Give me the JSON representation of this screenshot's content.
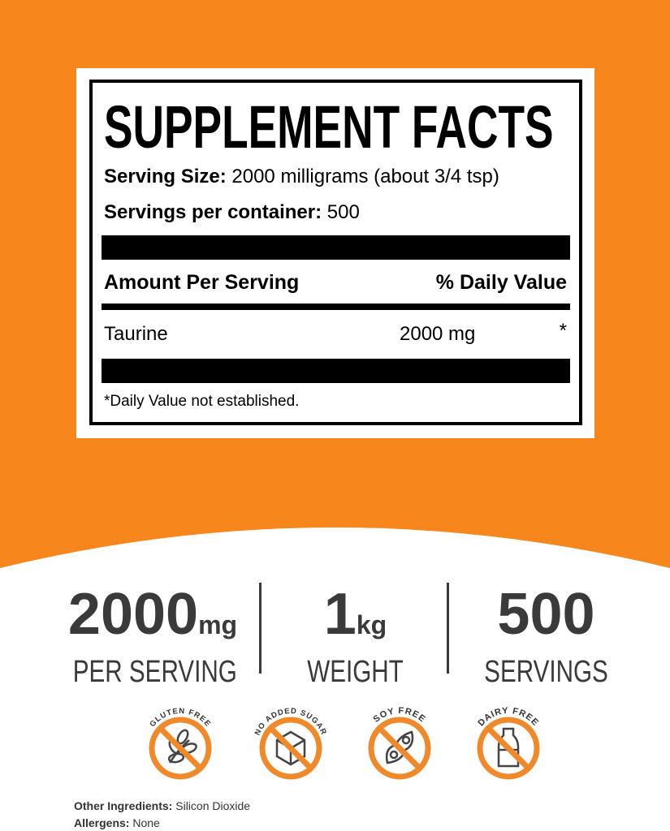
{
  "colors": {
    "orange": "#F7861C",
    "badge_orange": "#F0892A",
    "text_gray": "#3a3a3a"
  },
  "facts": {
    "title": "SUPPLEMENT FACTS",
    "serving_size_label": "Serving Size:",
    "serving_size_value": " 2000 milligrams (about 3/4 tsp)",
    "servings_label": "Servings per container:",
    "servings_value": " 500",
    "amount_header": "Amount Per Serving",
    "dv_header": "% Daily Value",
    "ingredient": {
      "name": "Taurine",
      "amount": "2000 mg",
      "dv": "*"
    },
    "footnote": "*Daily Value not established."
  },
  "stats": [
    {
      "num": "2000",
      "unit": "mg",
      "sub": "PER SERVING"
    },
    {
      "num": "1",
      "unit": "kg",
      "sub": "WEIGHT"
    },
    {
      "num": "500",
      "unit": "",
      "sub": "SERVINGS"
    }
  ],
  "badges": [
    {
      "label": "GLUTEN FREE",
      "icon": "wheat-icon"
    },
    {
      "label": "NO ADDED SUGAR",
      "icon": "sugar-cube-icon"
    },
    {
      "label": "SOY FREE",
      "icon": "soybean-icon"
    },
    {
      "label": "DAIRY FREE",
      "icon": "milk-bottle-icon"
    }
  ],
  "other_ingredients": {
    "label": "Other Ingredients:",
    "value": " Silicon Dioxide"
  },
  "allergens": {
    "label": "Allergens:",
    "value": " None"
  }
}
